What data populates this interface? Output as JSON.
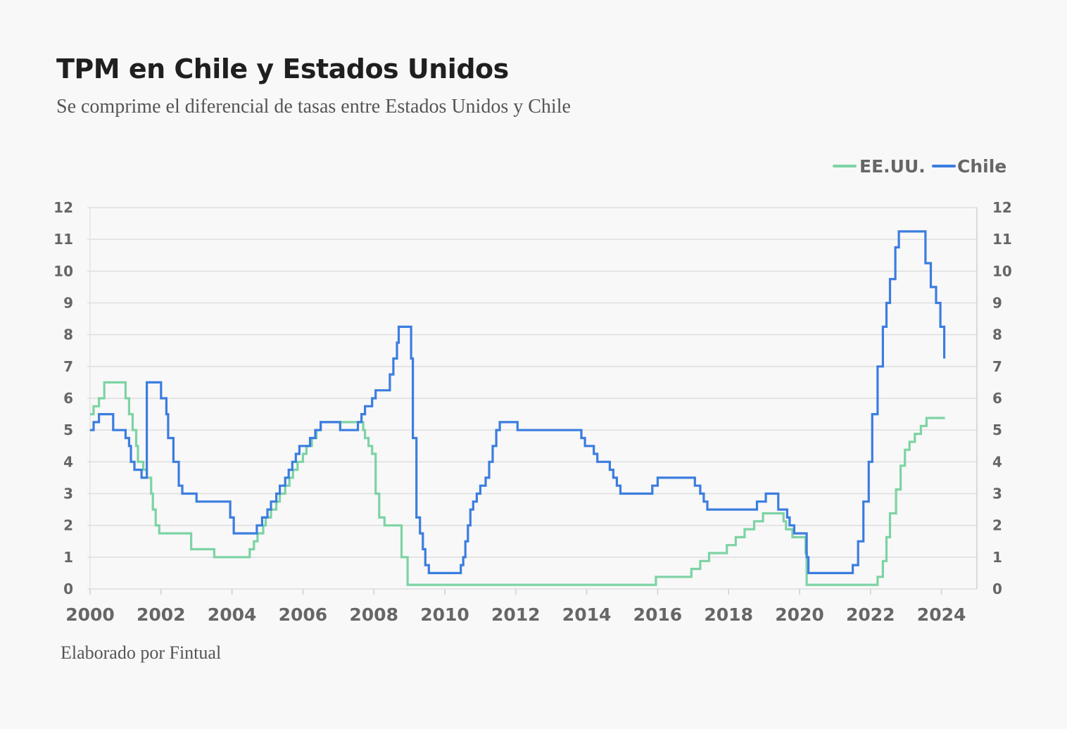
{
  "chart_data": {
    "type": "line",
    "title": "TPM en Chile y Estados Unidos",
    "subtitle": "Se comprime el diferencial de tasas entre Estados Unidos y Chile",
    "source": "Elaborado por Fintual",
    "xlabel": "",
    "ylabel": "",
    "xlim": [
      2000,
      2025
    ],
    "ylim": [
      0,
      12
    ],
    "xticks": [
      2000,
      2002,
      2004,
      2006,
      2008,
      2010,
      2012,
      2014,
      2016,
      2018,
      2020,
      2022,
      2024
    ],
    "yticks": [
      0,
      1,
      2,
      3,
      4,
      5,
      6,
      7,
      8,
      9,
      10,
      11,
      12
    ],
    "grid": true,
    "legend_position": "top-right",
    "series": [
      {
        "name": "EE.UU.",
        "color": "#7dd3a4",
        "step": true,
        "points": [
          [
            2000.0,
            5.5
          ],
          [
            2000.1,
            5.75
          ],
          [
            2000.25,
            6.0
          ],
          [
            2000.4,
            6.5
          ],
          [
            2001.0,
            6.0
          ],
          [
            2001.1,
            5.5
          ],
          [
            2001.2,
            5.0
          ],
          [
            2001.3,
            4.5
          ],
          [
            2001.35,
            4.0
          ],
          [
            2001.5,
            3.75
          ],
          [
            2001.6,
            3.5
          ],
          [
            2001.72,
            3.0
          ],
          [
            2001.77,
            2.5
          ],
          [
            2001.85,
            2.0
          ],
          [
            2001.95,
            1.75
          ],
          [
            2002.85,
            1.25
          ],
          [
            2003.5,
            1.0
          ],
          [
            2004.5,
            1.25
          ],
          [
            2004.62,
            1.5
          ],
          [
            2004.72,
            1.75
          ],
          [
            2004.88,
            2.0
          ],
          [
            2004.95,
            2.25
          ],
          [
            2005.1,
            2.5
          ],
          [
            2005.25,
            2.75
          ],
          [
            2005.35,
            3.0
          ],
          [
            2005.5,
            3.25
          ],
          [
            2005.62,
            3.5
          ],
          [
            2005.72,
            3.75
          ],
          [
            2005.85,
            4.0
          ],
          [
            2006.0,
            4.25
          ],
          [
            2006.1,
            4.5
          ],
          [
            2006.25,
            4.75
          ],
          [
            2006.38,
            5.0
          ],
          [
            2006.5,
            5.25
          ],
          [
            2007.7,
            5.0
          ],
          [
            2007.75,
            4.75
          ],
          [
            2007.85,
            4.5
          ],
          [
            2007.95,
            4.25
          ],
          [
            2008.05,
            3.0
          ],
          [
            2008.15,
            2.25
          ],
          [
            2008.3,
            2.0
          ],
          [
            2008.78,
            1.0
          ],
          [
            2008.95,
            0.13
          ],
          [
            2015.95,
            0.38
          ],
          [
            2016.95,
            0.63
          ],
          [
            2017.2,
            0.88
          ],
          [
            2017.45,
            1.13
          ],
          [
            2017.95,
            1.38
          ],
          [
            2018.2,
            1.63
          ],
          [
            2018.45,
            1.88
          ],
          [
            2018.72,
            2.13
          ],
          [
            2018.97,
            2.38
          ],
          [
            2019.55,
            2.13
          ],
          [
            2019.62,
            1.88
          ],
          [
            2019.8,
            1.63
          ],
          [
            2020.17,
            1.13
          ],
          [
            2020.2,
            0.13
          ],
          [
            2022.2,
            0.38
          ],
          [
            2022.35,
            0.88
          ],
          [
            2022.45,
            1.63
          ],
          [
            2022.55,
            2.38
          ],
          [
            2022.72,
            3.13
          ],
          [
            2022.85,
            3.88
          ],
          [
            2022.97,
            4.38
          ],
          [
            2023.1,
            4.63
          ],
          [
            2023.25,
            4.88
          ],
          [
            2023.42,
            5.13
          ],
          [
            2023.58,
            5.38
          ],
          [
            2024.1,
            5.38
          ]
        ]
      },
      {
        "name": "Chile",
        "color": "#3b7de0",
        "step": true,
        "points": [
          [
            2000.0,
            5.0
          ],
          [
            2000.1,
            5.25
          ],
          [
            2000.25,
            5.5
          ],
          [
            2000.65,
            5.0
          ],
          [
            2001.0,
            4.75
          ],
          [
            2001.1,
            4.5
          ],
          [
            2001.15,
            4.0
          ],
          [
            2001.25,
            3.75
          ],
          [
            2001.45,
            3.5
          ],
          [
            2001.6,
            6.5
          ],
          [
            2002.0,
            6.0
          ],
          [
            2002.15,
            5.5
          ],
          [
            2002.2,
            4.75
          ],
          [
            2002.35,
            4.0
          ],
          [
            2002.5,
            3.25
          ],
          [
            2002.6,
            3.0
          ],
          [
            2003.0,
            2.75
          ],
          [
            2003.95,
            2.25
          ],
          [
            2004.05,
            1.75
          ],
          [
            2004.7,
            2.0
          ],
          [
            2004.85,
            2.25
          ],
          [
            2005.0,
            2.5
          ],
          [
            2005.1,
            2.75
          ],
          [
            2005.25,
            3.0
          ],
          [
            2005.35,
            3.25
          ],
          [
            2005.5,
            3.5
          ],
          [
            2005.6,
            3.75
          ],
          [
            2005.7,
            4.0
          ],
          [
            2005.8,
            4.25
          ],
          [
            2005.9,
            4.5
          ],
          [
            2006.2,
            4.75
          ],
          [
            2006.35,
            5.0
          ],
          [
            2006.5,
            5.25
          ],
          [
            2007.05,
            5.0
          ],
          [
            2007.55,
            5.25
          ],
          [
            2007.65,
            5.5
          ],
          [
            2007.75,
            5.75
          ],
          [
            2007.95,
            6.0
          ],
          [
            2008.05,
            6.25
          ],
          [
            2008.45,
            6.75
          ],
          [
            2008.55,
            7.25
          ],
          [
            2008.65,
            7.75
          ],
          [
            2008.7,
            8.25
          ],
          [
            2009.05,
            7.25
          ],
          [
            2009.1,
            4.75
          ],
          [
            2009.2,
            2.25
          ],
          [
            2009.3,
            1.75
          ],
          [
            2009.38,
            1.25
          ],
          [
            2009.45,
            0.75
          ],
          [
            2009.55,
            0.5
          ],
          [
            2010.45,
            0.75
          ],
          [
            2010.52,
            1.0
          ],
          [
            2010.58,
            1.5
          ],
          [
            2010.65,
            2.0
          ],
          [
            2010.72,
            2.5
          ],
          [
            2010.8,
            2.75
          ],
          [
            2010.9,
            3.0
          ],
          [
            2011.0,
            3.25
          ],
          [
            2011.15,
            3.5
          ],
          [
            2011.25,
            4.0
          ],
          [
            2011.35,
            4.5
          ],
          [
            2011.45,
            5.0
          ],
          [
            2011.55,
            5.25
          ],
          [
            2012.05,
            5.0
          ],
          [
            2013.85,
            4.75
          ],
          [
            2013.95,
            4.5
          ],
          [
            2014.2,
            4.25
          ],
          [
            2014.3,
            4.0
          ],
          [
            2014.65,
            3.75
          ],
          [
            2014.75,
            3.5
          ],
          [
            2014.85,
            3.25
          ],
          [
            2014.95,
            3.0
          ],
          [
            2015.85,
            3.25
          ],
          [
            2016.0,
            3.5
          ],
          [
            2017.05,
            3.25
          ],
          [
            2017.2,
            3.0
          ],
          [
            2017.3,
            2.75
          ],
          [
            2017.4,
            2.5
          ],
          [
            2018.8,
            2.75
          ],
          [
            2019.05,
            3.0
          ],
          [
            2019.4,
            2.5
          ],
          [
            2019.65,
            2.25
          ],
          [
            2019.72,
            2.0
          ],
          [
            2019.85,
            1.75
          ],
          [
            2020.2,
            1.0
          ],
          [
            2020.25,
            0.5
          ],
          [
            2021.5,
            0.75
          ],
          [
            2021.65,
            1.5
          ],
          [
            2021.8,
            2.75
          ],
          [
            2021.95,
            4.0
          ],
          [
            2022.05,
            5.5
          ],
          [
            2022.2,
            7.0
          ],
          [
            2022.35,
            8.25
          ],
          [
            2022.45,
            9.0
          ],
          [
            2022.55,
            9.75
          ],
          [
            2022.7,
            10.75
          ],
          [
            2022.8,
            11.25
          ],
          [
            2023.55,
            10.25
          ],
          [
            2023.7,
            9.5
          ],
          [
            2023.85,
            9.0
          ],
          [
            2023.97,
            8.25
          ],
          [
            2024.08,
            7.25
          ]
        ]
      }
    ]
  }
}
